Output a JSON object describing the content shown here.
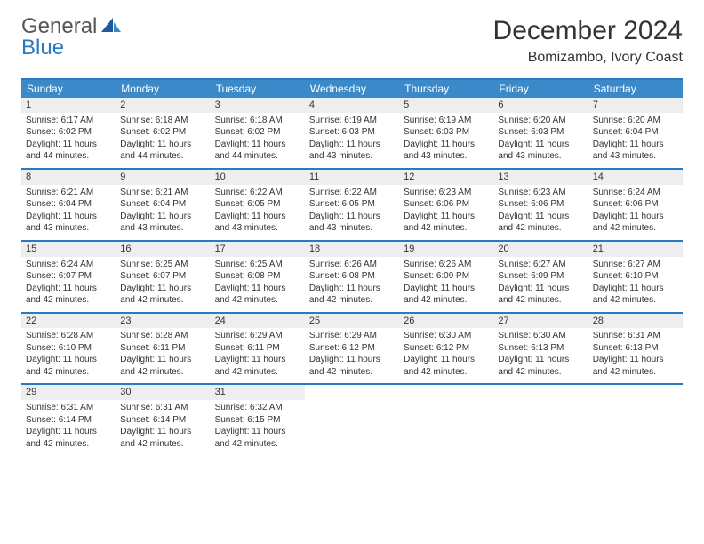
{
  "brand": {
    "text_main": "General",
    "text_accent": "Blue",
    "colors": {
      "main": "#555555",
      "accent": "#2b78c4",
      "icon_dark": "#1f5a94",
      "icon_light": "#3b89c9"
    }
  },
  "title": "December 2024",
  "location": "Bomizambo, Ivory Coast",
  "colors": {
    "header_bg": "#3b89c9",
    "header_fg": "#ffffff",
    "daynum_bg": "#eceeef",
    "border": "#2b78c4",
    "text": "#333333",
    "page_bg": "#ffffff"
  },
  "weekdays": [
    "Sunday",
    "Monday",
    "Tuesday",
    "Wednesday",
    "Thursday",
    "Friday",
    "Saturday"
  ],
  "weeks": [
    [
      {
        "n": "1",
        "sunrise": "Sunrise: 6:17 AM",
        "sunset": "Sunset: 6:02 PM",
        "daylight": "Daylight: 11 hours and 44 minutes."
      },
      {
        "n": "2",
        "sunrise": "Sunrise: 6:18 AM",
        "sunset": "Sunset: 6:02 PM",
        "daylight": "Daylight: 11 hours and 44 minutes."
      },
      {
        "n": "3",
        "sunrise": "Sunrise: 6:18 AM",
        "sunset": "Sunset: 6:02 PM",
        "daylight": "Daylight: 11 hours and 44 minutes."
      },
      {
        "n": "4",
        "sunrise": "Sunrise: 6:19 AM",
        "sunset": "Sunset: 6:03 PM",
        "daylight": "Daylight: 11 hours and 43 minutes."
      },
      {
        "n": "5",
        "sunrise": "Sunrise: 6:19 AM",
        "sunset": "Sunset: 6:03 PM",
        "daylight": "Daylight: 11 hours and 43 minutes."
      },
      {
        "n": "6",
        "sunrise": "Sunrise: 6:20 AM",
        "sunset": "Sunset: 6:03 PM",
        "daylight": "Daylight: 11 hours and 43 minutes."
      },
      {
        "n": "7",
        "sunrise": "Sunrise: 6:20 AM",
        "sunset": "Sunset: 6:04 PM",
        "daylight": "Daylight: 11 hours and 43 minutes."
      }
    ],
    [
      {
        "n": "8",
        "sunrise": "Sunrise: 6:21 AM",
        "sunset": "Sunset: 6:04 PM",
        "daylight": "Daylight: 11 hours and 43 minutes."
      },
      {
        "n": "9",
        "sunrise": "Sunrise: 6:21 AM",
        "sunset": "Sunset: 6:04 PM",
        "daylight": "Daylight: 11 hours and 43 minutes."
      },
      {
        "n": "10",
        "sunrise": "Sunrise: 6:22 AM",
        "sunset": "Sunset: 6:05 PM",
        "daylight": "Daylight: 11 hours and 43 minutes."
      },
      {
        "n": "11",
        "sunrise": "Sunrise: 6:22 AM",
        "sunset": "Sunset: 6:05 PM",
        "daylight": "Daylight: 11 hours and 43 minutes."
      },
      {
        "n": "12",
        "sunrise": "Sunrise: 6:23 AM",
        "sunset": "Sunset: 6:06 PM",
        "daylight": "Daylight: 11 hours and 42 minutes."
      },
      {
        "n": "13",
        "sunrise": "Sunrise: 6:23 AM",
        "sunset": "Sunset: 6:06 PM",
        "daylight": "Daylight: 11 hours and 42 minutes."
      },
      {
        "n": "14",
        "sunrise": "Sunrise: 6:24 AM",
        "sunset": "Sunset: 6:06 PM",
        "daylight": "Daylight: 11 hours and 42 minutes."
      }
    ],
    [
      {
        "n": "15",
        "sunrise": "Sunrise: 6:24 AM",
        "sunset": "Sunset: 6:07 PM",
        "daylight": "Daylight: 11 hours and 42 minutes."
      },
      {
        "n": "16",
        "sunrise": "Sunrise: 6:25 AM",
        "sunset": "Sunset: 6:07 PM",
        "daylight": "Daylight: 11 hours and 42 minutes."
      },
      {
        "n": "17",
        "sunrise": "Sunrise: 6:25 AM",
        "sunset": "Sunset: 6:08 PM",
        "daylight": "Daylight: 11 hours and 42 minutes."
      },
      {
        "n": "18",
        "sunrise": "Sunrise: 6:26 AM",
        "sunset": "Sunset: 6:08 PM",
        "daylight": "Daylight: 11 hours and 42 minutes."
      },
      {
        "n": "19",
        "sunrise": "Sunrise: 6:26 AM",
        "sunset": "Sunset: 6:09 PM",
        "daylight": "Daylight: 11 hours and 42 minutes."
      },
      {
        "n": "20",
        "sunrise": "Sunrise: 6:27 AM",
        "sunset": "Sunset: 6:09 PM",
        "daylight": "Daylight: 11 hours and 42 minutes."
      },
      {
        "n": "21",
        "sunrise": "Sunrise: 6:27 AM",
        "sunset": "Sunset: 6:10 PM",
        "daylight": "Daylight: 11 hours and 42 minutes."
      }
    ],
    [
      {
        "n": "22",
        "sunrise": "Sunrise: 6:28 AM",
        "sunset": "Sunset: 6:10 PM",
        "daylight": "Daylight: 11 hours and 42 minutes."
      },
      {
        "n": "23",
        "sunrise": "Sunrise: 6:28 AM",
        "sunset": "Sunset: 6:11 PM",
        "daylight": "Daylight: 11 hours and 42 minutes."
      },
      {
        "n": "24",
        "sunrise": "Sunrise: 6:29 AM",
        "sunset": "Sunset: 6:11 PM",
        "daylight": "Daylight: 11 hours and 42 minutes."
      },
      {
        "n": "25",
        "sunrise": "Sunrise: 6:29 AM",
        "sunset": "Sunset: 6:12 PM",
        "daylight": "Daylight: 11 hours and 42 minutes."
      },
      {
        "n": "26",
        "sunrise": "Sunrise: 6:30 AM",
        "sunset": "Sunset: 6:12 PM",
        "daylight": "Daylight: 11 hours and 42 minutes."
      },
      {
        "n": "27",
        "sunrise": "Sunrise: 6:30 AM",
        "sunset": "Sunset: 6:13 PM",
        "daylight": "Daylight: 11 hours and 42 minutes."
      },
      {
        "n": "28",
        "sunrise": "Sunrise: 6:31 AM",
        "sunset": "Sunset: 6:13 PM",
        "daylight": "Daylight: 11 hours and 42 minutes."
      }
    ],
    [
      {
        "n": "29",
        "sunrise": "Sunrise: 6:31 AM",
        "sunset": "Sunset: 6:14 PM",
        "daylight": "Daylight: 11 hours and 42 minutes."
      },
      {
        "n": "30",
        "sunrise": "Sunrise: 6:31 AM",
        "sunset": "Sunset: 6:14 PM",
        "daylight": "Daylight: 11 hours and 42 minutes."
      },
      {
        "n": "31",
        "sunrise": "Sunrise: 6:32 AM",
        "sunset": "Sunset: 6:15 PM",
        "daylight": "Daylight: 11 hours and 42 minutes."
      },
      null,
      null,
      null,
      null
    ]
  ]
}
